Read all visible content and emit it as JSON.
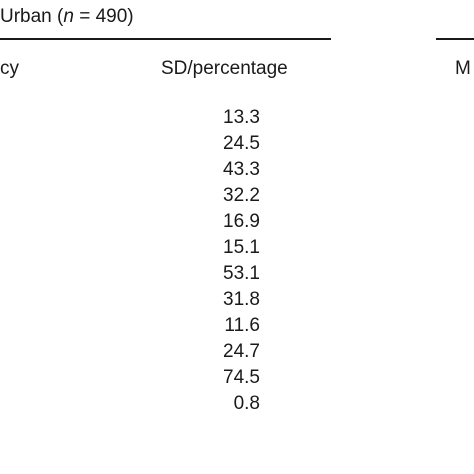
{
  "table": {
    "group_header": {
      "prefix": "Urban (",
      "n_symbol": "n",
      "equals": " = ",
      "n_value": "490",
      "suffix": ")"
    },
    "columns": {
      "frequency_tail": "cy",
      "sd_percentage": "SD/percentage",
      "next_group_tail": "M"
    },
    "sd_percentage_values": [
      "13.3",
      "24.5",
      "43.3",
      "32.2",
      "16.9",
      "15.1",
      "53.1",
      "31.8",
      "11.6",
      "24.7",
      "74.5",
      "0.8"
    ]
  }
}
